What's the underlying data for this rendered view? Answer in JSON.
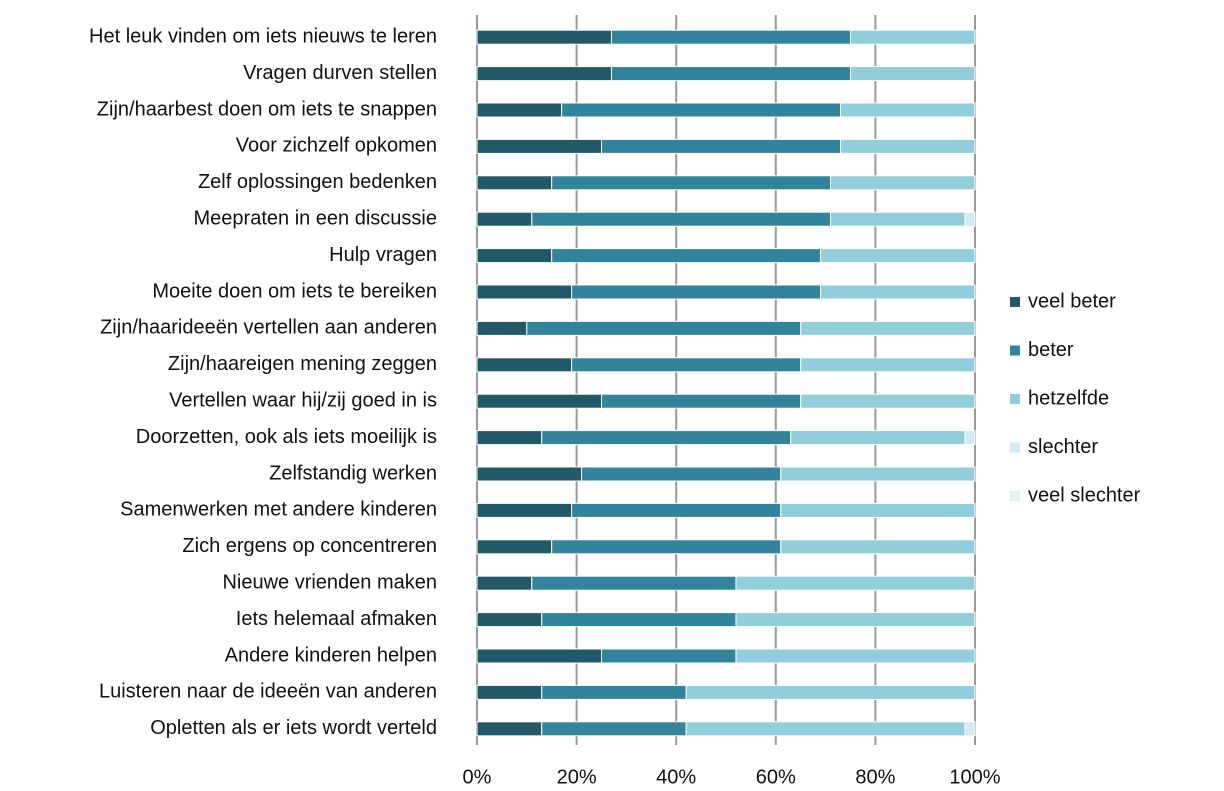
{
  "chart_data": {
    "type": "stacked-bar-horizontal",
    "categories": [
      "Het leuk vinden om iets nieuws te leren",
      "Vragen durven stellen",
      "Zijn/haarbest doen om iets te snappen",
      "Voor zichzelf opkomen",
      "Zelf oplossingen bedenken",
      "Meepraten in een discussie",
      "Hulp vragen",
      "Moeite doen om iets te bereiken",
      "Zijn/haarideeën vertellen aan anderen",
      "Zijn/haareigen mening zeggen",
      "Vertellen waar hij/zij goed in is",
      "Doorzetten, ook als iets moeilijk is",
      "Zelfstandig werken",
      "Samenwerken met andere kinderen",
      "Zich ergens op concentreren",
      "Nieuwe vrienden maken",
      "Iets helemaal afmaken",
      "Andere kinderen helpen",
      "Luisteren naar de ideeën van anderen",
      "Opletten als er iets wordt verteld"
    ],
    "series": [
      {
        "name": "veel beter",
        "color": "#215968",
        "values": [
          27,
          27,
          17,
          25,
          15,
          11,
          15,
          19,
          10,
          19,
          25,
          13,
          21,
          19,
          15,
          11,
          13,
          25,
          13,
          13
        ]
      },
      {
        "name": "beter",
        "color": "#31849b",
        "values": [
          48,
          48,
          56,
          48,
          56,
          60,
          54,
          50,
          55,
          46,
          40,
          50,
          40,
          42,
          46,
          41,
          39,
          27,
          29,
          29
        ]
      },
      {
        "name": "hetzelfde",
        "color": "#92cddc",
        "values": [
          25,
          25,
          27,
          27,
          29,
          27,
          31,
          31,
          35,
          35,
          35,
          35,
          39,
          39,
          39,
          48,
          48,
          48,
          58,
          56
        ]
      },
      {
        "name": "slechter",
        "color": "#d5e9f1",
        "values": [
          0,
          0,
          0,
          0,
          0,
          2,
          0,
          0,
          0,
          0,
          0,
          2,
          0,
          0,
          0,
          0,
          0,
          0,
          0,
          2
        ]
      },
      {
        "name": "veel slechter",
        "color": "#e4f2f8",
        "values": [
          0,
          0,
          0,
          0,
          0,
          0,
          0,
          0,
          0,
          0,
          0,
          0,
          0,
          0,
          0,
          0,
          0,
          0,
          0,
          0
        ]
      }
    ],
    "xlim": [
      0,
      100
    ],
    "xticks": [
      {
        "value": 0,
        "label": "0%"
      },
      {
        "value": 20,
        "label": "20%"
      },
      {
        "value": 40,
        "label": "40%"
      },
      {
        "value": 60,
        "label": "60%"
      },
      {
        "value": 80,
        "label": "80%"
      },
      {
        "value": 100,
        "label": "100%"
      }
    ],
    "grid": true,
    "legend": "right"
  }
}
